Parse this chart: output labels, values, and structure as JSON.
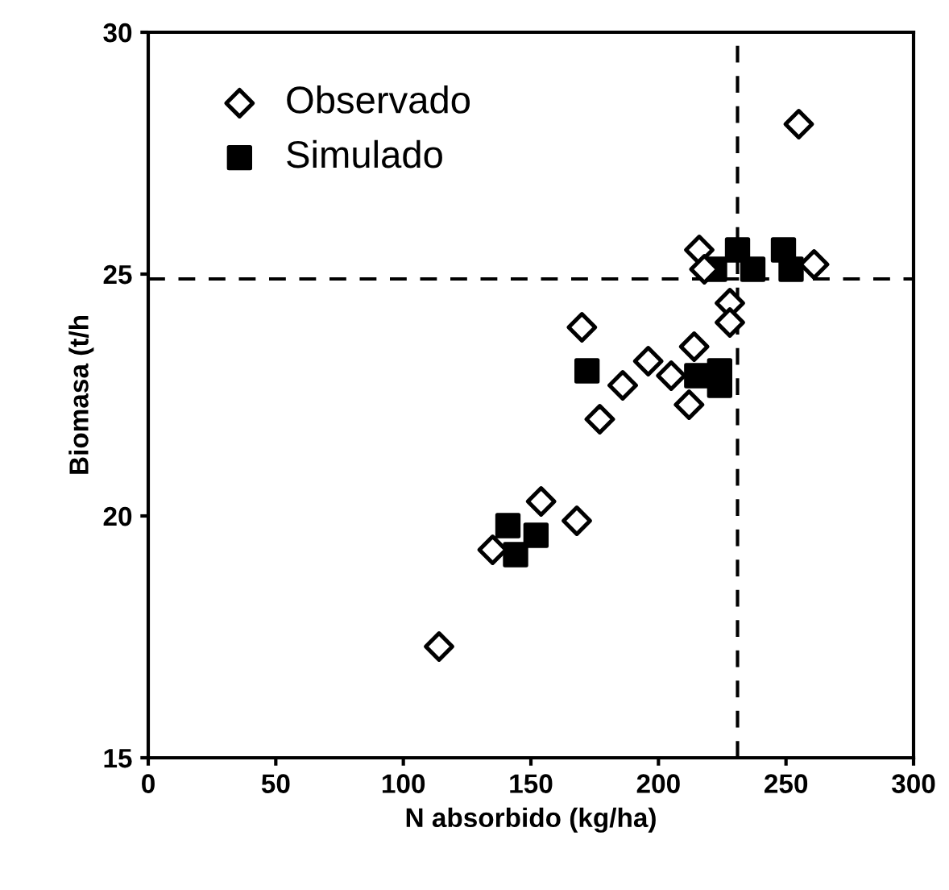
{
  "chart_data": {
    "type": "scatter",
    "xlabel": "N absorbido (kg/ha)",
    "ylabel": "Biomasa (t/h",
    "xlim": [
      0,
      300
    ],
    "xticks": [
      0,
      50,
      100,
      150,
      200,
      250,
      300
    ],
    "ylim": [
      15,
      30
    ],
    "yticks": [
      15,
      20,
      25,
      30
    ],
    "grid": false,
    "legend": "top left",
    "series": [
      {
        "name": "Observado",
        "color": "#000000",
        "marker": "diamond",
        "x": [
          114,
          135,
          154,
          168,
          170,
          177,
          186,
          196,
          205,
          212,
          214,
          216,
          218,
          228,
          228,
          255,
          261
        ],
        "values": [
          17.3,
          19.3,
          20.3,
          19.9,
          23.9,
          22.0,
          22.7,
          23.2,
          22.9,
          22.3,
          23.5,
          25.5,
          25.1,
          24.4,
          24.0,
          28.1,
          25.2
        ]
      },
      {
        "name": "Simulado",
        "color": "#000000",
        "marker": "square",
        "x": [
          141,
          152,
          144,
          172,
          215,
          224,
          224,
          222,
          231,
          237,
          249,
          252
        ],
        "values": [
          19.8,
          19.6,
          19.2,
          23.0,
          22.9,
          22.7,
          23.0,
          25.1,
          25.5,
          25.1,
          25.5,
          25.1
        ]
      }
    ],
    "ref_lines": [
      {
        "axis": "y",
        "value": 24.9,
        "line_style": "dashed",
        "color": "#000000"
      },
      {
        "axis": "x",
        "value": 231,
        "line_style": "dashed",
        "color": "#000000"
      }
    ]
  }
}
